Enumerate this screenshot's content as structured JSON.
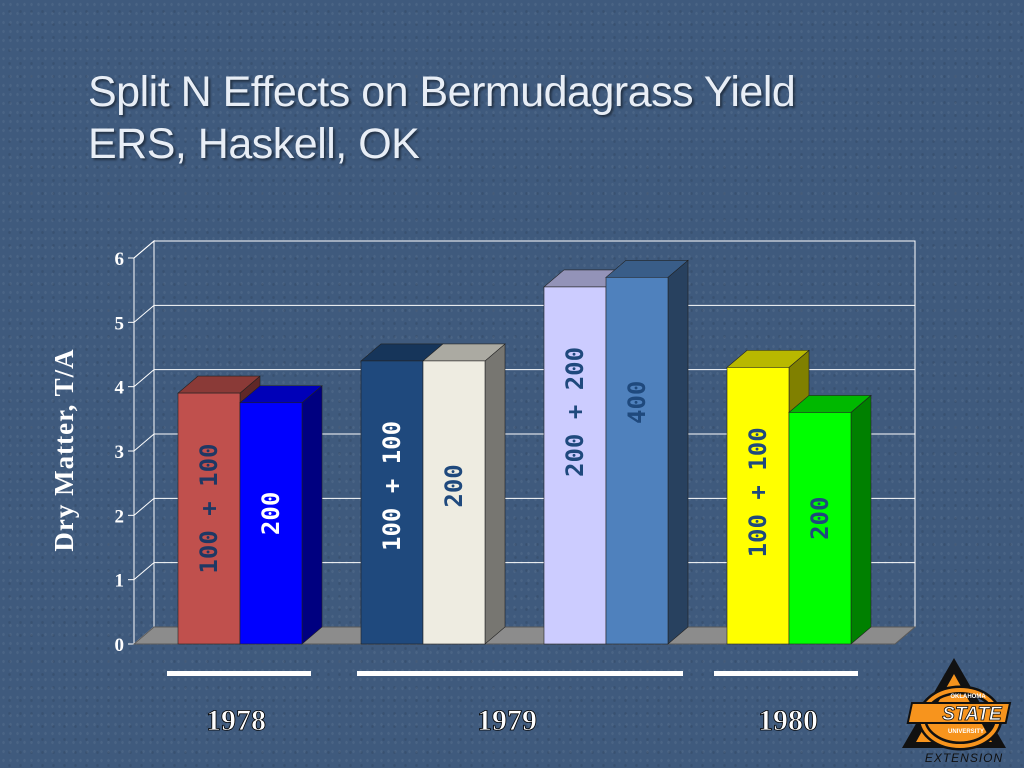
{
  "title": "Split N Effects on Bermudagrass Yield",
  "subtitle": "ERS, Haskell, OK",
  "chart_data": {
    "type": "bar",
    "ylabel": "Dry Matter, T/A",
    "ylim": [
      0,
      6
    ],
    "yticks": [
      0,
      1,
      2,
      3,
      4,
      5,
      6
    ],
    "grid": true,
    "groups": [
      "1978",
      "1979",
      "1980"
    ],
    "bars": [
      {
        "group": "1978",
        "label": "100 + 100",
        "value": 3.9,
        "color": "#c0504d",
        "label_color": "#1f3864"
      },
      {
        "group": "1978",
        "label": "200",
        "value": 3.75,
        "color": "#0000ff",
        "label_color": "#ffffff"
      },
      {
        "group": "1979",
        "label": "100 + 100",
        "value": 4.4,
        "color": "#1f497d",
        "label_color": "#ffffff"
      },
      {
        "group": "1979",
        "label": "200",
        "value": 4.4,
        "color": "#eeece1",
        "label_color": "#1f497d"
      },
      {
        "group": "1979",
        "label": "200 + 200",
        "value": 5.55,
        "color": "#ccccff",
        "label_color": "#1f497d"
      },
      {
        "group": "1979",
        "label": "400",
        "value": 5.7,
        "color": "#4f81bd",
        "label_color": "#1f497d"
      },
      {
        "group": "1980",
        "label": "100 + 100",
        "value": 4.3,
        "color": "#ffff00",
        "label_color": "#1f497d"
      },
      {
        "group": "1980",
        "label": "200",
        "value": 3.6,
        "color": "#00ff00",
        "label_color": "#1f497d"
      }
    ]
  },
  "logo": {
    "line1": "OKLAHOMA",
    "line2": "STATE",
    "line3": "UNIVERSITY",
    "line4": "EXTENSION",
    "accent": "#f7941d"
  }
}
